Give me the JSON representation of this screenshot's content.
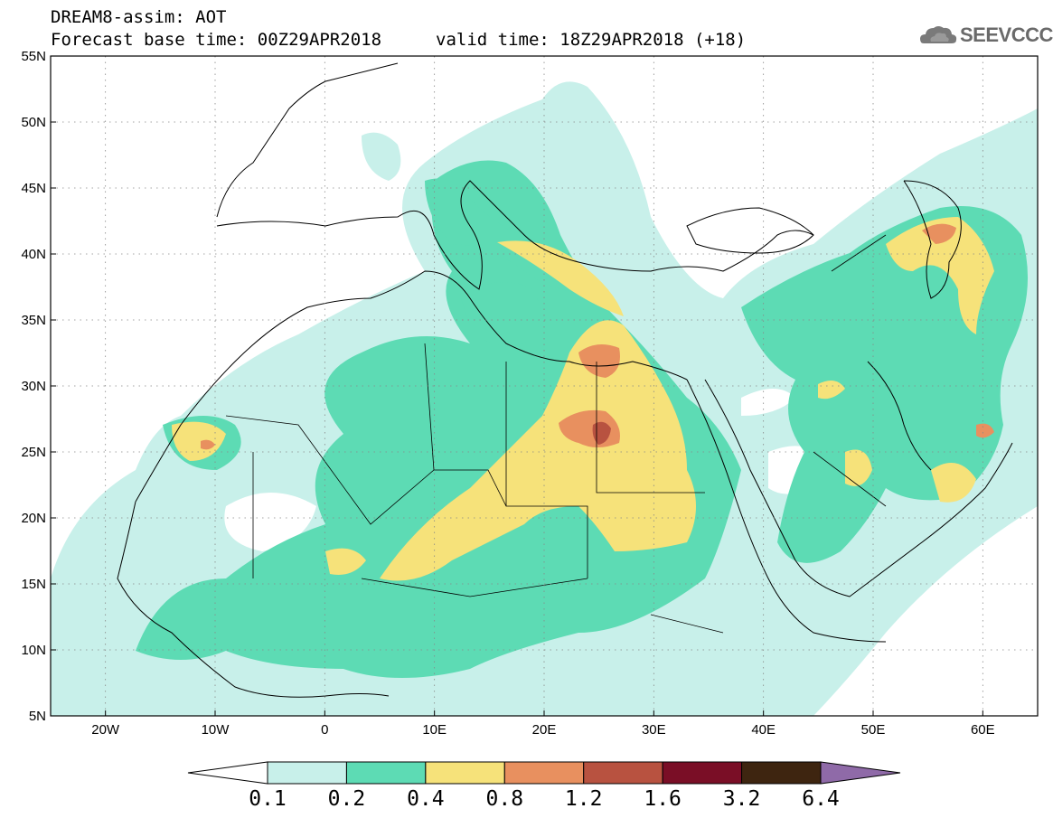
{
  "header": {
    "title_line1": "DREAM8-assim: AOT",
    "title_line2": "Forecast base time: 00Z29APR2018",
    "valid_time": "valid time: 18Z29APR2018 (+18)",
    "logo_text": "SEEVCCC",
    "logo_icon": "cloud-icon"
  },
  "map": {
    "lat_labels": [
      "55N",
      "50N",
      "45N",
      "40N",
      "35N",
      "30N",
      "25N",
      "20N",
      "15N",
      "10N",
      "5N"
    ],
    "lon_labels": [
      "20W",
      "10W",
      "0",
      "10E",
      "20E",
      "30E",
      "40E",
      "50E",
      "60E"
    ],
    "lat_range": [
      5,
      55
    ],
    "lon_range": [
      -25,
      65
    ],
    "grid": "dotted"
  },
  "colorbar": {
    "labels": [
      "0.1",
      "0.2",
      "0.4",
      "0.8",
      "1.2",
      "1.6",
      "3.2",
      "6.4"
    ],
    "colors": [
      "#ffffff",
      "#c8f0ea",
      "#5ddbb4",
      "#f6e27a",
      "#e8905f",
      "#b85240",
      "#7a0e26",
      "#3e2510",
      "#8f6aa8"
    ]
  }
}
